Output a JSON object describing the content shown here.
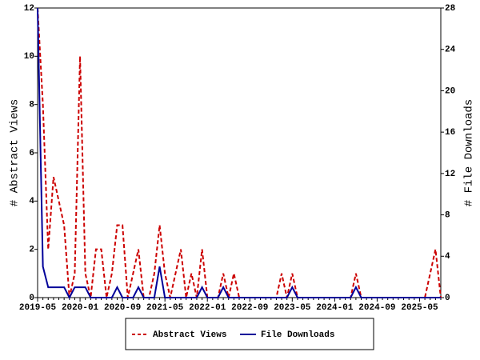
{
  "chart_data": {
    "type": "line",
    "y_label": "# Abstract Views",
    "y2_label": "# File Downloads",
    "categories": [
      "2019-05",
      null,
      null,
      null,
      null,
      null,
      null,
      null,
      "2020-01",
      null,
      null,
      null,
      null,
      null,
      null,
      null,
      "2020-09",
      null,
      null,
      null,
      null,
      null,
      null,
      null,
      "2021-05",
      null,
      null,
      null,
      null,
      null,
      null,
      null,
      "2022-01",
      null,
      null,
      null,
      null,
      null,
      null,
      null,
      "2022-09",
      null,
      null,
      null,
      null,
      null,
      null,
      null,
      "2023-05",
      null,
      null,
      null,
      null,
      null,
      null,
      null,
      "2024-01",
      null,
      null,
      null,
      null,
      null,
      null,
      null,
      "2024-09",
      null,
      null,
      null,
      null,
      null,
      null,
      null,
      "2025-05",
      null,
      null,
      null,
      null
    ],
    "series": [
      {
        "name": "Abstract Views",
        "color": "#cc0000",
        "dash": true,
        "values": [
          12,
          8,
          2,
          5,
          4,
          3,
          0,
          1,
          10,
          1,
          0,
          2,
          2,
          0,
          1,
          3,
          3,
          0,
          1,
          2,
          0,
          0,
          1,
          3,
          1,
          0,
          1,
          2,
          0,
          1,
          0,
          2,
          0,
          0,
          0,
          1,
          0,
          1,
          0,
          0,
          0,
          0,
          0,
          0,
          0,
          0,
          1,
          0,
          1,
          0,
          0,
          0,
          0,
          0,
          0,
          0,
          0,
          0,
          0,
          0,
          1,
          0,
          0,
          0,
          0,
          0,
          0,
          0,
          0,
          0,
          0,
          0,
          0,
          0,
          1,
          2,
          0
        ]
      },
      {
        "name": "File Downloads",
        "color": "#000099",
        "dash": false,
        "axis": "y2",
        "values": [
          28,
          3,
          1,
          1,
          1,
          1,
          0,
          1,
          1,
          1,
          0,
          0,
          0,
          0,
          0,
          1,
          0,
          0,
          0,
          1,
          0,
          0,
          0,
          3,
          0,
          0,
          0,
          0,
          0,
          0,
          0,
          1,
          0,
          0,
          0,
          1,
          0,
          0,
          0,
          0,
          0,
          0,
          0,
          0,
          0,
          0,
          0,
          0,
          1,
          0,
          0,
          0,
          0,
          0,
          0,
          0,
          0,
          0,
          0,
          0,
          1,
          0,
          0,
          0,
          0,
          0,
          0,
          0,
          0,
          0,
          0,
          0,
          0,
          0,
          0,
          0,
          0
        ]
      }
    ],
    "ylim": [
      0,
      12
    ],
    "yticks": [
      0,
      2,
      4,
      6,
      8,
      10,
      12
    ],
    "y2lim": [
      0,
      28
    ],
    "y2ticks": [
      0,
      4,
      8,
      12,
      16,
      20,
      24,
      28
    ],
    "legend": "bottom"
  }
}
